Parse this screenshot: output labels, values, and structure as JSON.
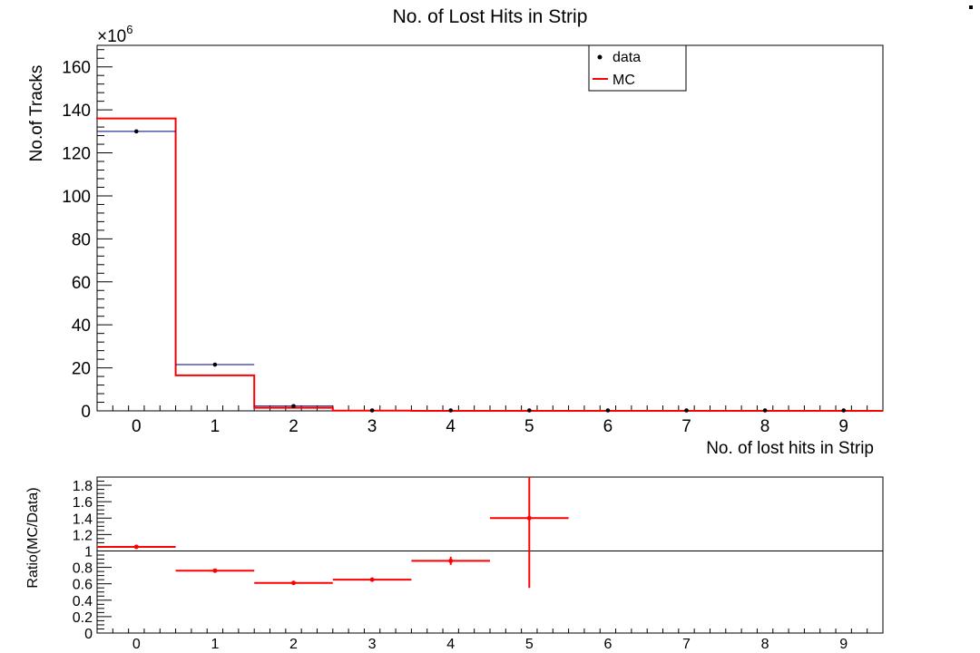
{
  "colors": {
    "data": "#000000",
    "data_err": "#000080",
    "mc": "#ff0000",
    "ratio": "#ff0000",
    "axis": "#000000",
    "ref_line": "#000000"
  },
  "chart_data": [
    {
      "type": "histogram",
      "title": "No. of Lost Hits in Strip",
      "xlabel": "No. of lost hits in Strip",
      "ylabel": "No.of Tracks",
      "y_exponent": "×10",
      "y_exponent_power": "6",
      "xlim": [
        -0.5,
        9.5
      ],
      "ylim": [
        0,
        170
      ],
      "x_ticks": [
        "0",
        "1",
        "2",
        "3",
        "4",
        "5",
        "6",
        "7",
        "8",
        "9"
      ],
      "y_ticks": [
        "0",
        "20",
        "40",
        "60",
        "80",
        "100",
        "120",
        "140",
        "160"
      ],
      "legend": {
        "placement": "top-right",
        "entries": [
          {
            "label": "data",
            "marker": "point"
          },
          {
            "label": "MC",
            "marker": "line"
          }
        ]
      },
      "series": [
        {
          "name": "data",
          "kind": "points",
          "x": [
            0,
            1,
            2,
            3,
            4,
            5,
            6,
            7,
            8,
            9
          ],
          "values": [
            130,
            21.5,
            2.2,
            0.15,
            0.02,
            0.002,
            0,
            0,
            0,
            0
          ]
        },
        {
          "name": "MC",
          "kind": "step",
          "x": [
            0,
            1,
            2,
            3,
            4,
            5,
            6,
            7,
            8,
            9
          ],
          "values": [
            136,
            16.5,
            1.4,
            0.1,
            0.017,
            0.003,
            0,
            0,
            0,
            0
          ]
        }
      ]
    },
    {
      "type": "scatter",
      "ylabel": "Ratio(MC/Data)",
      "xlim": [
        -0.5,
        9.5
      ],
      "ylim": [
        0,
        1.9
      ],
      "reference_line": 1,
      "x_ticks": [
        "0",
        "1",
        "2",
        "3",
        "4",
        "5",
        "6",
        "7",
        "8",
        "9"
      ],
      "y_ticks": [
        "0",
        "0.2",
        "0.4",
        "0.6",
        "0.8",
        "1",
        "1.2",
        "1.4",
        "1.6",
        "1.8"
      ],
      "series": [
        {
          "name": "ratio",
          "x": [
            0,
            1,
            2,
            3,
            4,
            5
          ],
          "values": [
            1.05,
            0.76,
            0.61,
            0.65,
            0.88,
            1.4
          ],
          "errors": [
            0.005,
            0.005,
            0.005,
            0.01,
            0.05,
            0.85
          ]
        }
      ]
    }
  ]
}
